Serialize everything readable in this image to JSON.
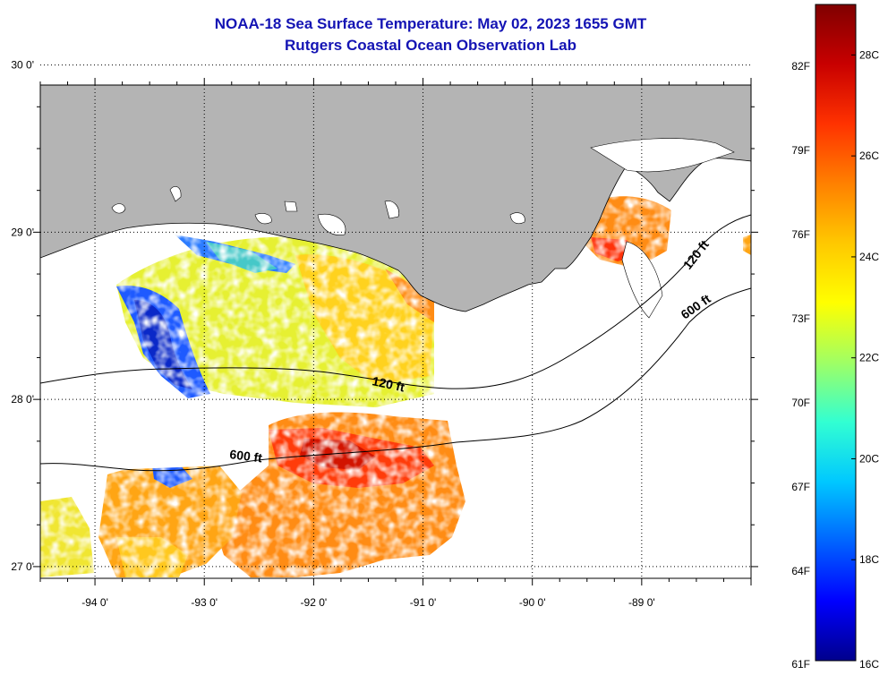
{
  "title_line1": "NOAA-18 Sea Surface Temperature:  May 02, 2023 1655 GMT",
  "title_line2": "Rutgers Coastal Ocean Observation Lab",
  "map": {
    "lon_range": [
      -94.5,
      -88.0
    ],
    "lat_range": [
      26.93,
      29.88
    ],
    "lon_ticks": [
      {
        "value": -94,
        "label": "-94 0'"
      },
      {
        "value": -93,
        "label": "-93 0'"
      },
      {
        "value": -92,
        "label": "-92 0'"
      },
      {
        "value": -91,
        "label": "-91 0'"
      },
      {
        "value": -90,
        "label": "-90 0'"
      },
      {
        "value": -89,
        "label": "-89 0'"
      }
    ],
    "lat_ticks": [
      {
        "value": 30,
        "label": "30 0'"
      },
      {
        "value": 29,
        "label": "29 0'"
      },
      {
        "value": 28,
        "label": "28 0'"
      },
      {
        "value": 27,
        "label": "27 0'"
      }
    ],
    "contours": [
      {
        "depth": "120 ft",
        "label": "120 ft"
      },
      {
        "depth": "600 ft",
        "label": "600 ft"
      }
    ],
    "colors": {
      "land": "#b4b4b4",
      "no_data": "#ffffff",
      "grid": "#000000"
    }
  },
  "colorbar": {
    "range_c": [
      16,
      29
    ],
    "celsius_labels": [
      "28C",
      "26C",
      "24C",
      "22C",
      "20C",
      "18C",
      "16C"
    ],
    "fahrenheit_labels": [
      "82F",
      "79F",
      "76F",
      "73F",
      "70F",
      "67F",
      "64F",
      "61F"
    ],
    "palette": [
      "#00008c",
      "#0000ff",
      "#0064ff",
      "#00c8ff",
      "#32ffd2",
      "#a0ff64",
      "#ffff00",
      "#ffc800",
      "#ff8000",
      "#ff3200",
      "#c80000",
      "#800000"
    ]
  }
}
